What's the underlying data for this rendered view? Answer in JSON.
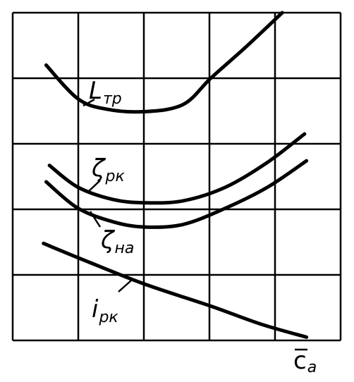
{
  "chart_data": {
    "type": "line",
    "x_label": "c",
    "x_label_sub": "a",
    "xlim": [
      0,
      5
    ],
    "ylim": [
      0,
      5
    ],
    "xticks": [
      0,
      1,
      2,
      3,
      4,
      5
    ],
    "yticks": [
      0,
      1,
      2,
      3,
      4,
      5
    ],
    "grid": true,
    "series": [
      {
        "name": "L",
        "name_sub": "тр",
        "color": "#000000",
        "x": [
          0.51,
          0.99,
          1.42,
          2.01,
          2.6,
          3.03,
          3.57,
          4.11
        ],
        "values": [
          4.2,
          3.69,
          3.53,
          3.49,
          3.6,
          4.01,
          4.49,
          5.0
        ]
      },
      {
        "name": "ζ",
        "name_sub": "рк",
        "color": "#000000",
        "x": [
          0.56,
          0.99,
          1.53,
          2.01,
          2.6,
          3.25,
          3.89,
          4.45
        ],
        "values": [
          2.67,
          2.34,
          2.15,
          2.1,
          2.13,
          2.34,
          2.72,
          3.15
        ]
      },
      {
        "name": "ζ",
        "name_sub": "на",
        "color": "#000000",
        "x": [
          0.51,
          0.99,
          1.53,
          2.01,
          2.6,
          3.25,
          3.89,
          4.48
        ],
        "values": [
          2.42,
          2.02,
          1.81,
          1.73,
          1.77,
          2.02,
          2.34,
          2.74
        ]
      },
      {
        "name": "i",
        "name_sub": "рк",
        "color": "#000000",
        "x": [
          0.47,
          1.1,
          2.01,
          3.03,
          3.78,
          4.48
        ],
        "values": [
          1.48,
          1.22,
          0.86,
          0.52,
          0.25,
          0.05
        ]
      }
    ]
  }
}
